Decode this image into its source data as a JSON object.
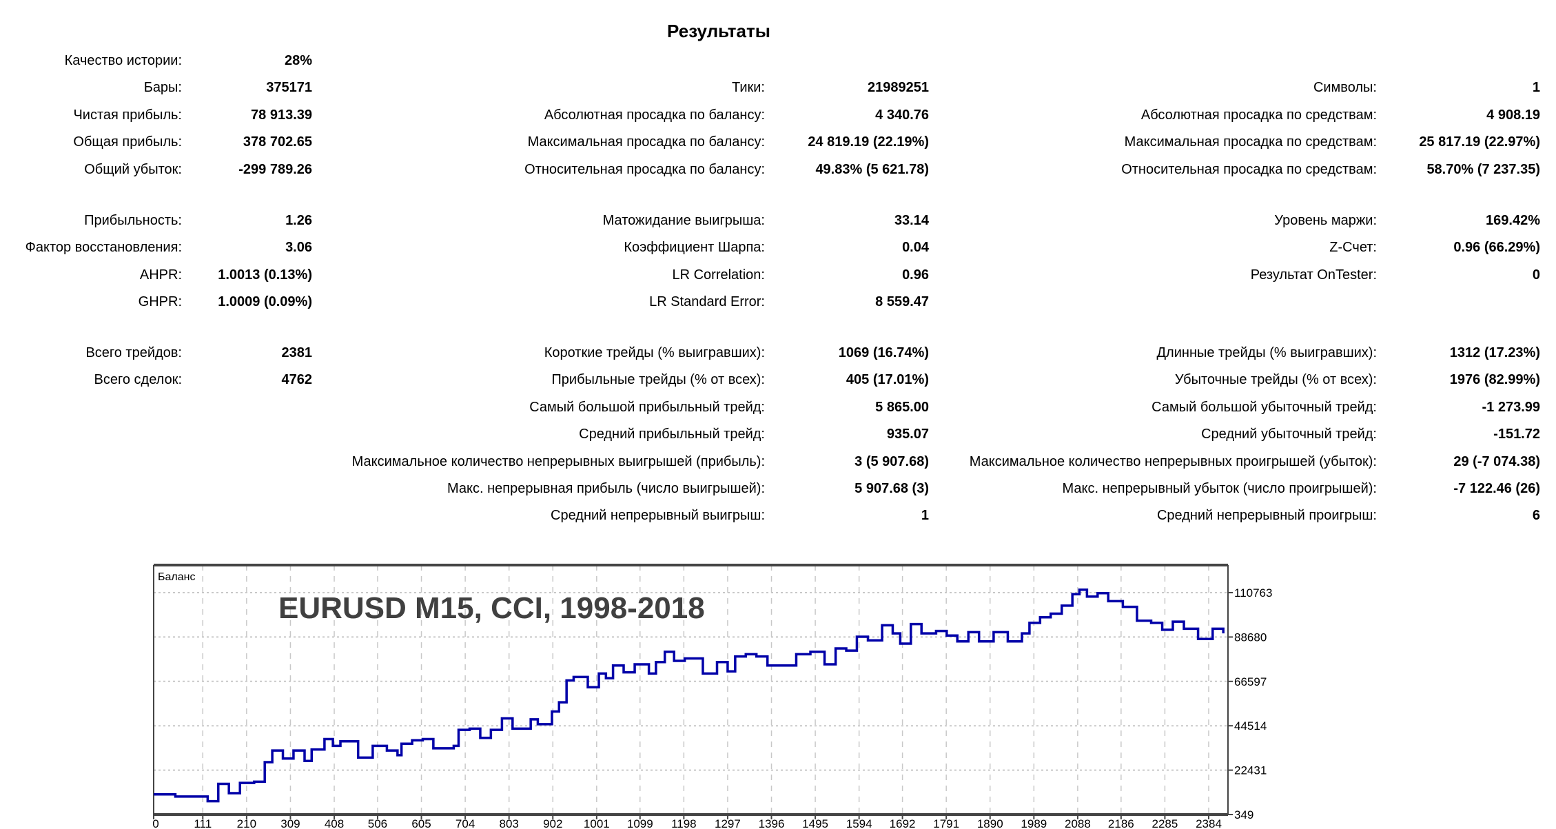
{
  "title": "Результаты",
  "groups": [
    [
      [
        [
          "Качество истории:",
          "28%"
        ],
        null,
        null
      ],
      [
        [
          "Бары:",
          "375171"
        ],
        [
          "Тики:",
          "21989251"
        ],
        [
          "Символы:",
          "1"
        ]
      ],
      [
        [
          "Чистая прибыль:",
          "78 913.39"
        ],
        [
          "Абсолютная просадка по балансу:",
          "4 340.76"
        ],
        [
          "Абсолютная просадка по средствам:",
          "4 908.19"
        ]
      ],
      [
        [
          "Общая прибыль:",
          "378 702.65"
        ],
        [
          "Максимальная просадка по балансу:",
          "24 819.19 (22.19%)"
        ],
        [
          "Максимальная просадка по средствам:",
          "25 817.19 (22.97%)"
        ]
      ],
      [
        [
          "Общий убыток:",
          "-299 789.26"
        ],
        [
          "Относительная просадка по балансу:",
          "49.83% (5 621.78)"
        ],
        [
          "Относительная просадка по средствам:",
          "58.70% (7 237.35)"
        ]
      ]
    ],
    [
      [
        [
          "Прибыльность:",
          "1.26"
        ],
        [
          "Матожидание выигрыша:",
          "33.14"
        ],
        [
          "Уровень маржи:",
          "169.42%"
        ]
      ],
      [
        [
          "Фактор восстановления:",
          "3.06"
        ],
        [
          "Коэффициент Шарпа:",
          "0.04"
        ],
        [
          "Z-Счет:",
          "0.96 (66.29%)"
        ]
      ],
      [
        [
          "AHPR:",
          "1.0013 (0.13%)"
        ],
        [
          "LR Correlation:",
          "0.96"
        ],
        [
          "Результат OnTester:",
          "0"
        ]
      ],
      [
        [
          "GHPR:",
          "1.0009 (0.09%)"
        ],
        [
          "LR Standard Error:",
          "8 559.47"
        ],
        null
      ]
    ],
    [
      [
        [
          "Всего трейдов:",
          "2381"
        ],
        [
          "Короткие трейды (% выигравших):",
          "1069 (16.74%)"
        ],
        [
          "Длинные трейды (% выигравших):",
          "1312 (17.23%)"
        ]
      ],
      [
        [
          "Всего сделок:",
          "4762"
        ],
        [
          "Прибыльные трейды (% от всех):",
          "405 (17.01%)"
        ],
        [
          "Убыточные трейды (% от всех):",
          "1976 (82.99%)"
        ]
      ],
      [
        null,
        [
          "Самый большой прибыльный трейд:",
          "5 865.00"
        ],
        [
          "Самый большой убыточный трейд:",
          "-1 273.99"
        ]
      ],
      [
        null,
        [
          "Средний прибыльный трейд:",
          "935.07"
        ],
        [
          "Средний убыточный трейд:",
          "-151.72"
        ]
      ],
      [
        null,
        [
          "Максимальное количество непрерывных выигрышей (прибыль):",
          "3 (5 907.68)"
        ],
        [
          "Максимальное количество непрерывных проигрышей (убыток):",
          "29 (-7 074.38)"
        ]
      ],
      [
        null,
        [
          "Макс. непрерывная прибыль (число выигрышей):",
          "5 907.68 (3)"
        ],
        [
          "Макс. непрерывный убыток (число проигрышей):",
          "-7 122.46 (26)"
        ]
      ],
      [
        null,
        [
          "Средний непрерывный выигрыш:",
          "1"
        ],
        [
          "Средний непрерывный проигрыш:",
          "6"
        ]
      ]
    ]
  ],
  "chart_data": {
    "type": "line",
    "title": "EURUSD M15, CCI, 1998-2018",
    "series_label": "Баланс",
    "line_color": "#0000a8",
    "xlabel": "",
    "ylabel": "",
    "xlim": [
      0,
      2420
    ],
    "ylim": [
      349,
      110763
    ],
    "x_ticks": [
      0,
      111,
      210,
      309,
      408,
      506,
      605,
      704,
      803,
      902,
      1001,
      1099,
      1198,
      1297,
      1396,
      1495,
      1594,
      1692,
      1791,
      1890,
      1989,
      2088,
      2186,
      2285,
      2384
    ],
    "y_ticks": [
      349,
      22431,
      44514,
      66597,
      88680,
      110763
    ],
    "grid": true,
    "x": [
      0,
      49,
      122,
      146,
      170,
      195,
      227,
      251,
      268,
      292,
      316,
      341,
      357,
      386,
      405,
      422,
      462,
      495,
      527,
      551,
      560,
      584,
      608,
      632,
      657,
      678,
      689,
      714,
      738,
      762,
      787,
      811,
      852,
      868,
      900,
      916,
      933,
      949,
      981,
      1006,
      1022,
      1038,
      1062,
      1087,
      1119,
      1135,
      1155,
      1176,
      1200,
      1241,
      1273,
      1297,
      1314,
      1338,
      1362,
      1387,
      1427,
      1452,
      1484,
      1516,
      1541,
      1565,
      1589,
      1614,
      1646,
      1670,
      1687,
      1711,
      1735,
      1768,
      1792,
      1816,
      1841,
      1865,
      1898,
      1930,
      1962,
      1979,
      2003,
      2027,
      2052,
      2076,
      2092,
      2109,
      2133,
      2157,
      2190,
      2222,
      2254,
      2279,
      2303,
      2328,
      2360,
      2393,
      2417
    ],
    "y": [
      10400,
      9300,
      7000,
      15600,
      11000,
      16100,
      16700,
      26400,
      32200,
      28200,
      32200,
      27000,
      32700,
      37900,
      34500,
      36800,
      28700,
      34500,
      32200,
      29900,
      35600,
      37300,
      37900,
      33300,
      33300,
      34500,
      42500,
      43100,
      38500,
      42500,
      48200,
      43100,
      47700,
      45300,
      51600,
      56200,
      67100,
      68800,
      63700,
      70500,
      68200,
      74500,
      71100,
      75100,
      70500,
      76200,
      81300,
      76800,
      78000,
      70500,
      76200,
      71600,
      79000,
      80100,
      79000,
      74500,
      74500,
      80100,
      81300,
      75100,
      83000,
      81900,
      88800,
      87000,
      94500,
      90500,
      85400,
      95100,
      90500,
      91700,
      89400,
      86500,
      91100,
      86500,
      91100,
      86500,
      90500,
      95700,
      98500,
      100300,
      104300,
      110000,
      112200,
      108800,
      110500,
      106500,
      103700,
      96800,
      95700,
      92300,
      96300,
      92800,
      87700,
      92800,
      90500
    ]
  }
}
